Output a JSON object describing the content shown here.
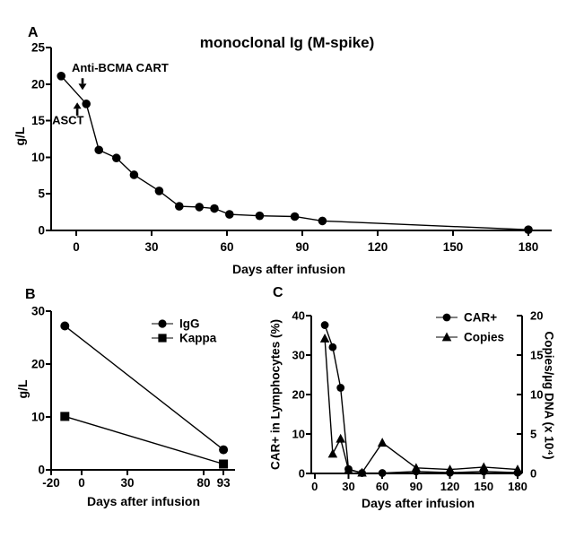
{
  "figure": {
    "panel_labels": [
      "A",
      "B",
      "C"
    ],
    "background": "#ffffff",
    "ink_color": "#000000"
  },
  "chart_data": [
    {
      "panel": "A",
      "type": "line",
      "title": "monoclonal Ig (M-spike)",
      "xlabel": "Days after infusion",
      "ylabel": "g/L",
      "xlim": [
        -10,
        190
      ],
      "ylim": [
        0,
        25
      ],
      "xticks": [
        0,
        30,
        60,
        90,
        120,
        150,
        180
      ],
      "yticks": [
        0,
        5,
        10,
        15,
        20,
        25
      ],
      "grid": false,
      "legend_position": "none",
      "series": [
        {
          "name": "M-spike",
          "marker": "circle",
          "axis": "left",
          "x": [
            -6,
            4,
            9,
            16,
            23,
            33,
            41,
            49,
            55,
            61,
            73,
            87,
            98,
            180
          ],
          "y": [
            21.1,
            17.3,
            11.0,
            9.9,
            7.6,
            5.4,
            3.3,
            3.2,
            3.0,
            2.2,
            2.0,
            1.9,
            1.3,
            0.1
          ]
        }
      ],
      "annotations": [
        {
          "text": "Anti-BCMA CART",
          "text_day": -1.8,
          "text_value": 21.7,
          "arrow_day": 2.5,
          "arrow_tail_value": 20.8,
          "arrow_tip_value": 19.2,
          "direction": "down"
        },
        {
          "text": "ASCT",
          "text_day": -9.6,
          "text_value": 14.5,
          "arrow_day": 0.4,
          "arrow_tail_value": 15.7,
          "arrow_tip_value": 17.5,
          "direction": "up"
        }
      ]
    },
    {
      "panel": "B",
      "type": "line",
      "title": "",
      "xlabel": "Days after infusion",
      "ylabel": "g/L",
      "xlim": [
        -20,
        100
      ],
      "ylim": [
        0,
        30
      ],
      "xticks": [
        -20,
        0,
        30,
        80,
        93
      ],
      "yticks": [
        0,
        10,
        20,
        30
      ],
      "grid": false,
      "legend_position": "top-right-inside",
      "series": [
        {
          "name": "IgG",
          "marker": "circle",
          "axis": "left",
          "x": [
            -11,
            93
          ],
          "y": [
            27.2,
            3.8
          ]
        },
        {
          "name": "Kappa",
          "marker": "square",
          "axis": "left",
          "x": [
            -11,
            93
          ],
          "y": [
            10.1,
            1.1
          ]
        }
      ],
      "annotations": []
    },
    {
      "panel": "C",
      "type": "line",
      "title": "",
      "xlabel": "Days after infusion",
      "ylabel": "CAR+ in Lymphocytes (%)",
      "ylabel_right": "Copies/µg DNA (x 10⁴)",
      "xlim": [
        -3,
        184
      ],
      "ylim": [
        0,
        40
      ],
      "ylim_right": [
        0,
        20
      ],
      "xticks": [
        0,
        30,
        60,
        90,
        120,
        150,
        180
      ],
      "yticks": [
        0,
        10,
        20,
        30,
        40
      ],
      "yticks_right": [
        0,
        5,
        10,
        15,
        20
      ],
      "grid": false,
      "legend_position": "top-right-inside",
      "series": [
        {
          "name": "CAR+",
          "marker": "circle",
          "axis": "left",
          "x": [
            9,
            16,
            23,
            30,
            42,
            60,
            90,
            120,
            150,
            180
          ],
          "y": [
            37.6,
            32.0,
            21.7,
            1.1,
            0.1,
            0.1,
            0.5,
            0.2,
            0.5,
            0.2
          ]
        },
        {
          "name": "Copies",
          "marker": "triangle",
          "axis": "right",
          "x": [
            9,
            16,
            23,
            30,
            42,
            60,
            90,
            120,
            150,
            180
          ],
          "y": [
            17.1,
            2.5,
            4.4,
            0.45,
            0.1,
            3.9,
            0.7,
            0.5,
            0.8,
            0.5
          ]
        }
      ],
      "annotations": []
    }
  ]
}
